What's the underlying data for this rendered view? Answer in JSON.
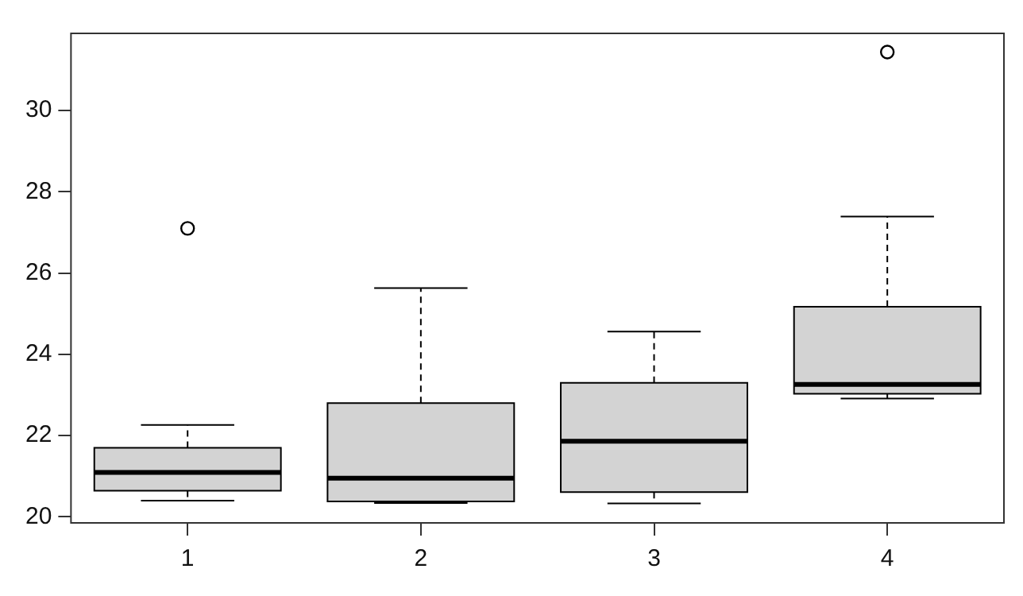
{
  "chart_data": {
    "type": "box",
    "categories": [
      "1",
      "2",
      "3",
      "4"
    ],
    "color": "#d3d3d3",
    "ylim": [
      19.85,
      31.9
    ],
    "yticks": [
      20,
      22,
      24,
      26,
      28,
      30
    ],
    "grid": false,
    "boxes": [
      {
        "low": 20.4,
        "q1": 20.64,
        "median": 21.09,
        "q3": 21.7,
        "high": 22.26,
        "outliers": [
          27.1
        ]
      },
      {
        "low": 20.34,
        "q1": 20.38,
        "median": 20.95,
        "q3": 22.8,
        "high": 25.63
      },
      {
        "low": 20.33,
        "q1": 20.61,
        "median": 21.86,
        "q3": 23.3,
        "high": 24.56
      },
      {
        "low": 22.91,
        "q1": 23.03,
        "median": 23.26,
        "q3": 25.17,
        "high": 27.39,
        "outliers": [
          31.44
        ]
      }
    ]
  }
}
